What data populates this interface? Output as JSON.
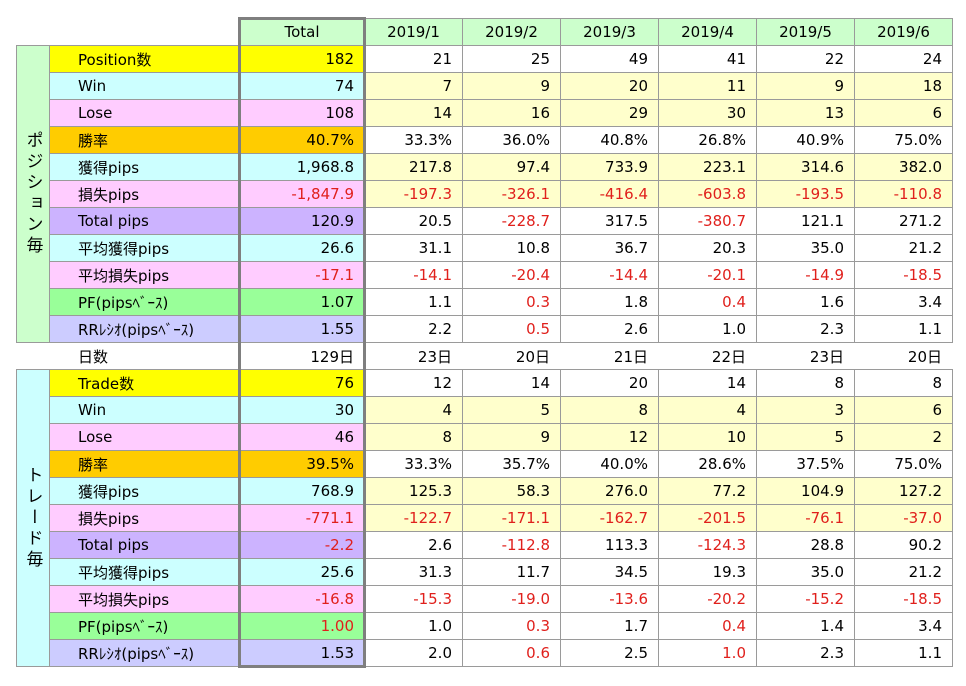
{
  "header": {
    "total": "Total",
    "months": [
      "2019/1",
      "2019/2",
      "2019/3",
      "2019/4",
      "2019/5",
      "2019/6"
    ]
  },
  "colors": {
    "header_bg": "#ccffcc",
    "count_row": "#ffff00",
    "win_row": "#ccffff",
    "lose_row": "#ffccff",
    "winrate_row": "#ffcc00",
    "gain_row": "#ccffff",
    "loss_row": "#ffccff",
    "total_pips_row": "#ccb3ff",
    "avg_gain_row": "#ccffff",
    "avg_loss_row": "#ffccff",
    "pf_row": "#99ff99",
    "rr_row": "#ccccff",
    "highlight_cells": "#ffffcc",
    "section_position": "#ccffcc",
    "section_trade": "#ccffff",
    "negative_text": "#e0201c"
  },
  "sections": [
    {
      "title": "ポジション毎",
      "rows": [
        {
          "label": "Position数",
          "style": "count_row",
          "total": "182",
          "values": [
            "21",
            "25",
            "49",
            "41",
            "22",
            "24"
          ]
        },
        {
          "label": "Win",
          "style": "win_row",
          "total": "74",
          "values": [
            "7",
            "9",
            "20",
            "11",
            "9",
            "18"
          ]
        },
        {
          "label": "Lose",
          "style": "lose_row",
          "total": "108",
          "values": [
            "14",
            "16",
            "29",
            "30",
            "13",
            "6"
          ]
        },
        {
          "label": "勝率",
          "style": "winrate_row",
          "total": "40.7%",
          "values": [
            "33.3%",
            "36.0%",
            "40.8%",
            "26.8%",
            "40.9%",
            "75.0%"
          ]
        },
        {
          "label": "獲得pips",
          "style": "gain_row",
          "total": "1,968.8",
          "values": [
            "217.8",
            "97.4",
            "733.9",
            "223.1",
            "314.6",
            "382.0"
          ]
        },
        {
          "label": "損失pips",
          "style": "loss_row",
          "total": "-1,847.9",
          "values": [
            "-197.3",
            "-326.1",
            "-416.4",
            "-603.8",
            "-193.5",
            "-110.8"
          ]
        },
        {
          "label": "Total pips",
          "style": "total_pips_row",
          "total": "120.9",
          "values": [
            "20.5",
            "-228.7",
            "317.5",
            "-380.7",
            "121.1",
            "271.2"
          ]
        },
        {
          "label": "平均獲得pips",
          "style": "avg_gain_row",
          "total": "26.6",
          "values": [
            "31.1",
            "10.8",
            "36.7",
            "20.3",
            "35.0",
            "21.2"
          ]
        },
        {
          "label": "平均損失pips",
          "style": "avg_loss_row",
          "total": "-17.1",
          "values": [
            "-14.1",
            "-20.4",
            "-14.4",
            "-20.1",
            "-14.9",
            "-18.5"
          ]
        },
        {
          "label": "PF(pipsﾍﾞｰｽ)",
          "style": "pf_row",
          "total": "1.07",
          "values": [
            "1.1",
            "0.3",
            "1.8",
            "0.4",
            "1.6",
            "3.4"
          ]
        },
        {
          "label": "RRﾚｼｵ(pipsﾍﾞｰｽ)",
          "style": "rr_row",
          "total": "1.55",
          "values": [
            "2.2",
            "0.5",
            "2.6",
            "1.0",
            "2.3",
            "1.1"
          ]
        }
      ]
    },
    {
      "title": "トレード毎",
      "rows": [
        {
          "label": "Trade数",
          "style": "count_row",
          "total": "76",
          "values": [
            "12",
            "14",
            "20",
            "14",
            "8",
            "8"
          ]
        },
        {
          "label": "Win",
          "style": "win_row",
          "total": "30",
          "values": [
            "4",
            "5",
            "8",
            "4",
            "3",
            "6"
          ]
        },
        {
          "label": "Lose",
          "style": "lose_row",
          "total": "46",
          "values": [
            "8",
            "9",
            "12",
            "10",
            "5",
            "2"
          ]
        },
        {
          "label": "勝率",
          "style": "winrate_row",
          "total": "39.5%",
          "values": [
            "33.3%",
            "35.7%",
            "40.0%",
            "28.6%",
            "37.5%",
            "75.0%"
          ]
        },
        {
          "label": "獲得pips",
          "style": "gain_row",
          "total": "768.9",
          "values": [
            "125.3",
            "58.3",
            "276.0",
            "77.2",
            "104.9",
            "127.2"
          ]
        },
        {
          "label": "損失pips",
          "style": "loss_row",
          "total": "-771.1",
          "values": [
            "-122.7",
            "-171.1",
            "-162.7",
            "-201.5",
            "-76.1",
            "-37.0"
          ]
        },
        {
          "label": "Total pips",
          "style": "total_pips_row",
          "total": "-2.2",
          "values": [
            "2.6",
            "-112.8",
            "113.3",
            "-124.3",
            "28.8",
            "90.2"
          ]
        },
        {
          "label": "平均獲得pips",
          "style": "avg_gain_row",
          "total": "25.6",
          "values": [
            "31.3",
            "11.7",
            "34.5",
            "19.3",
            "35.0",
            "21.2"
          ]
        },
        {
          "label": "平均損失pips",
          "style": "avg_loss_row",
          "total": "-16.8",
          "values": [
            "-15.3",
            "-19.0",
            "-13.6",
            "-20.2",
            "-15.2",
            "-18.5"
          ]
        },
        {
          "label": "PF(pipsﾍﾞｰｽ)",
          "style": "pf_row",
          "total": "1.00",
          "values": [
            "1.0",
            "0.3",
            "1.7",
            "0.4",
            "1.4",
            "3.4"
          ]
        },
        {
          "label": "RRﾚｼｵ(pipsﾍﾞｰｽ)",
          "style": "rr_row",
          "total": "1.53",
          "values": [
            "2.0",
            "0.6",
            "2.5",
            "1.0",
            "2.3",
            "1.1"
          ]
        }
      ]
    }
  ],
  "days_row": {
    "label": "日数",
    "total": "129日",
    "values": [
      "23日",
      "20日",
      "21日",
      "22日",
      "23日",
      "20日"
    ]
  }
}
